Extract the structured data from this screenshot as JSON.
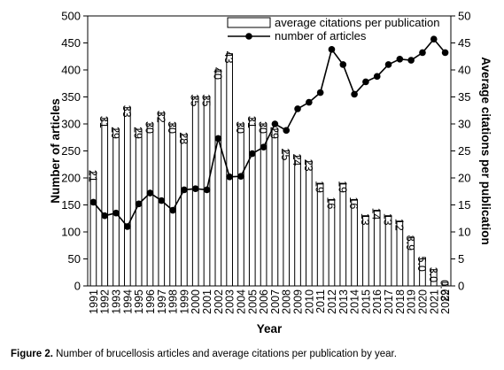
{
  "figure": {
    "caption_label": "Figure 2.",
    "caption_text": " Number of brucellosis articles and average citations per publication by year."
  },
  "chart_data": {
    "type": "bar+line",
    "x_label": "Year",
    "y_left_label": "Number of articles",
    "y_right_label": "Average citations per publication",
    "y_left_lim": [
      0,
      500
    ],
    "y_right_lim": [
      0,
      50
    ],
    "y_left_ticks": [
      0,
      50,
      100,
      150,
      200,
      250,
      300,
      350,
      400,
      450,
      500
    ],
    "y_right_ticks": [
      0,
      5,
      10,
      15,
      20,
      25,
      30,
      35,
      40,
      45,
      50
    ],
    "categories": [
      "1991",
      "1992",
      "1993",
      "1994",
      "1995",
      "1996",
      "1997",
      "1998",
      "1999",
      "2000",
      "2001",
      "2002",
      "2003",
      "2004",
      "2005",
      "2006",
      "2007",
      "2008",
      "2009",
      "2010",
      "2011",
      "2012",
      "2013",
      "2014",
      "2015",
      "2016",
      "2017",
      "2018",
      "2019",
      "2020",
      "2021",
      "2022"
    ],
    "legend": [
      {
        "name": "average citations per publication",
        "kind": "bar"
      },
      {
        "name": "number of articles",
        "kind": "line"
      }
    ],
    "legend_position": "top-right",
    "series": [
      {
        "name": "average citations per publication",
        "axis": "right",
        "kind": "bar",
        "values": [
          21,
          31,
          29,
          33,
          29,
          30,
          32,
          30,
          28,
          35,
          35,
          40,
          43,
          30,
          31,
          30,
          29,
          25,
          24,
          23,
          19,
          16,
          19,
          16,
          13,
          14,
          13,
          12,
          8.9,
          5.0,
          3.0,
          0.63
        ],
        "labels": [
          "21",
          "31",
          "29",
          "33",
          "29",
          "30",
          "32",
          "30",
          "28",
          "35",
          "35",
          "40",
          "43",
          "30",
          "31",
          "30",
          "29",
          "25",
          "24",
          "23",
          "19",
          "16",
          "19",
          "16",
          "13",
          "14",
          "13",
          "12",
          "8.9",
          "5.0",
          "3.0",
          "0.63"
        ]
      },
      {
        "name": "number of articles",
        "axis": "left",
        "kind": "line",
        "values": [
          155,
          130,
          135,
          110,
          152,
          172,
          158,
          140,
          178,
          180,
          178,
          273,
          202,
          203,
          245,
          257,
          300,
          288,
          328,
          340,
          358,
          438,
          410,
          355,
          378,
          388,
          410,
          420,
          418,
          432,
          457,
          432
        ]
      }
    ]
  }
}
